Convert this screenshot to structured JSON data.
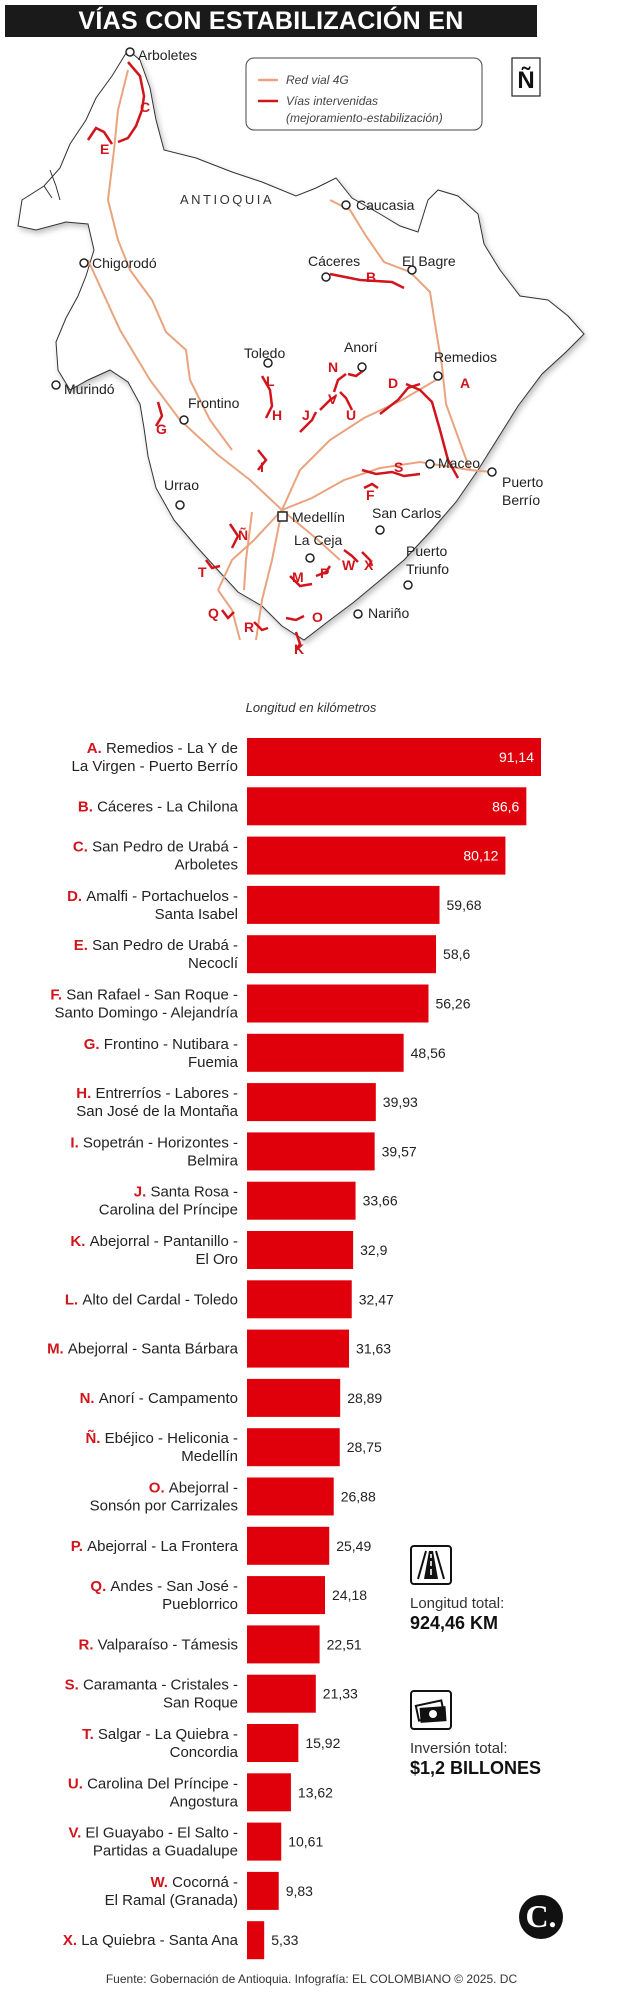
{
  "title": "VÍAS CON ESTABILIZACIÓN EN ANTIOQUIA",
  "map": {
    "region_label": "ANTIOQUIA",
    "north_symbol": "Ñ",
    "legend": {
      "line1": "Red vial 4G",
      "line2": "Vías intervenidas",
      "line3": "(mejoramiento-estabilización)",
      "colors": {
        "red_vial": "#e9a47f",
        "intervenidas": "#d0151c"
      }
    },
    "towns": [
      {
        "name": "Arboletes"
      },
      {
        "name": "Caucasia"
      },
      {
        "name": "Chigorodó"
      },
      {
        "name": "Cáceres"
      },
      {
        "name": "El Bagre"
      },
      {
        "name": "Anorí"
      },
      {
        "name": "Toledo"
      },
      {
        "name": "Remedios"
      },
      {
        "name": "Murindó"
      },
      {
        "name": "Frontino"
      },
      {
        "name": "Maceo"
      },
      {
        "name": "Puerto"
      },
      {
        "name": "Berrío"
      },
      {
        "name": "Urrao"
      },
      {
        "name": "Medellín"
      },
      {
        "name": "San Carlos"
      },
      {
        "name": "La Ceja"
      },
      {
        "name": "Puerto"
      },
      {
        "name": "Triunfo"
      },
      {
        "name": "Nariño"
      }
    ],
    "letters": [
      "C",
      "E",
      "B",
      "N",
      "L",
      "D",
      "A",
      "H",
      "J",
      "V",
      "U",
      "G",
      "I",
      "S",
      "F",
      "Ñ",
      "W",
      "X",
      "T",
      "M",
      "P",
      "Q",
      "O",
      "R",
      "K"
    ]
  },
  "chart_data": {
    "type": "bar",
    "orientation": "horizontal",
    "axis_title": "Longitud en kilómetros",
    "bar_color": "#e0000b",
    "categories": [
      {
        "letter": "A.",
        "lines": [
          "Remedios - La Y de",
          "La Virgen - Puerto Berrío"
        ]
      },
      {
        "letter": "B.",
        "lines": [
          "Cáceres - La Chilona"
        ]
      },
      {
        "letter": "C.",
        "lines": [
          "San Pedro de Urabá -",
          "Arboletes"
        ]
      },
      {
        "letter": "D.",
        "lines": [
          "Amalfi - Portachuelos -",
          "Santa Isabel"
        ]
      },
      {
        "letter": "E.",
        "lines": [
          "San Pedro de Urabá -",
          "Necoclí"
        ]
      },
      {
        "letter": "F.",
        "lines": [
          "San Rafael - San Roque -",
          "Santo Domingo - Alejandría"
        ]
      },
      {
        "letter": "G.",
        "lines": [
          "Frontino - Nutibara -",
          "Fuemia"
        ]
      },
      {
        "letter": "H.",
        "lines": [
          "Entrerríos - Labores -",
          "San José de la Montaña"
        ]
      },
      {
        "letter": "I.",
        "lines": [
          "Sopetrán - Horizontes -",
          "Belmira"
        ]
      },
      {
        "letter": "J.",
        "lines": [
          "Santa Rosa -",
          "Carolina del Príncipe"
        ]
      },
      {
        "letter": "K.",
        "lines": [
          "Abejorral - Pantanillo -",
          "El Oro"
        ]
      },
      {
        "letter": "L.",
        "lines": [
          "Alto del Cardal - Toledo"
        ]
      },
      {
        "letter": "M.",
        "lines": [
          "Abejorral - Santa Bárbara"
        ]
      },
      {
        "letter": "N.",
        "lines": [
          "Anorí - Campamento"
        ]
      },
      {
        "letter": "Ñ.",
        "lines": [
          "Ebéjico - Heliconia -",
          "Medellín"
        ]
      },
      {
        "letter": "O.",
        "lines": [
          "Abejorral -",
          "Sonsón por Carrizales"
        ]
      },
      {
        "letter": "P.",
        "lines": [
          "Abejorral - La Frontera"
        ]
      },
      {
        "letter": "Q.",
        "lines": [
          "Andes - San José -",
          "Pueblorrico"
        ]
      },
      {
        "letter": "R.",
        "lines": [
          "Valparaíso - Támesis"
        ]
      },
      {
        "letter": "S.",
        "lines": [
          "Caramanta - Cristales -",
          "San Roque"
        ]
      },
      {
        "letter": "T.",
        "lines": [
          "Salgar - La Quiebra -",
          "Concordia"
        ]
      },
      {
        "letter": "U.",
        "lines": [
          "Carolina Del Príncipe -",
          "Angostura"
        ]
      },
      {
        "letter": "V.",
        "lines": [
          "El Guayabo - El Salto -",
          "Partidas a Guadalupe"
        ]
      },
      {
        "letter": "W.",
        "lines": [
          "Cocorná -",
          "El Ramal (Granada)"
        ]
      },
      {
        "letter": "X.",
        "lines": [
          "La Quiebra - Santa Ana"
        ]
      }
    ],
    "values": [
      91.14,
      86.6,
      80.12,
      59.68,
      58.6,
      56.26,
      48.56,
      39.93,
      39.57,
      33.66,
      32.9,
      32.47,
      31.63,
      28.89,
      28.75,
      26.88,
      25.49,
      24.18,
      22.51,
      21.33,
      15.92,
      13.62,
      10.61,
      9.83,
      5.33
    ],
    "value_labels": [
      "91,14",
      "86,6",
      "80,12",
      "59,68",
      "58,6",
      "56,26",
      "48,56",
      "39,93",
      "39,57",
      "33,66",
      "32,9",
      "32,47",
      "31,63",
      "28,89",
      "28,75",
      "26,88",
      "25,49",
      "24,18",
      "22,51",
      "21,33",
      "15,92",
      "13,62",
      "10,61",
      "9,83",
      "5,33"
    ]
  },
  "stats": {
    "length_label": "Longitud total:",
    "length_value": "924,46 KM",
    "invest_label": "Inversión total:",
    "invest_value": "$1,2 BILLONES",
    "icon_length": "road-icon",
    "icon_invest": "money-icon"
  },
  "source": "Fuente: Gobernación de Antioquia. Infografía: EL COLOMBIANO © 2025. DC",
  "logo_letter": "C."
}
